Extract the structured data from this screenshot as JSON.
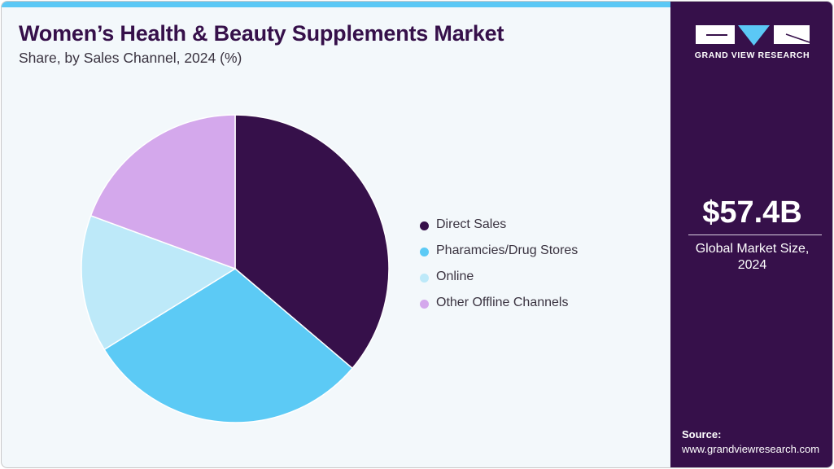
{
  "header": {
    "title": "Women’s Health & Beauty Supplements Market",
    "subtitle": "Share, by Sales Channel, 2024 (%)"
  },
  "legend": {
    "items": [
      {
        "label": "Direct Sales",
        "color": "#36104a"
      },
      {
        "label": "Pharamcies/Drug Stores",
        "color": "#5ccaf5"
      },
      {
        "label": "Online",
        "color": "#bde9f9"
      },
      {
        "label": "Other Offline Channels",
        "color": "#d4a8ec"
      }
    ]
  },
  "sidebar": {
    "brand": "GRAND VIEW RESEARCH",
    "market_size_value": "$57.4B",
    "market_size_label_line1": "Global Market Size,",
    "market_size_label_line2": "2024",
    "source_title": "Source:",
    "source_url": "www.grandviewresearch.com"
  },
  "colors": {
    "accent_bar": "#5bc8f5",
    "brand_purple": "#36104a",
    "background": "#f3f8fb"
  },
  "chart_data": {
    "type": "pie",
    "title": "Women’s Health & Beauty Supplements Market",
    "subtitle": "Share, by Sales Channel, 2024 (%)",
    "categories": [
      "Direct Sales",
      "Pharamcies/Drug Stores",
      "Online",
      "Other Offline Channels"
    ],
    "values": [
      36.2,
      30.0,
      14.4,
      19.4
    ],
    "colors": [
      "#36104a",
      "#5ccaf5",
      "#bde9f9",
      "#d4a8ec"
    ],
    "start_angle": "12 o'clock",
    "direction": "clockwise",
    "legend_position": "right"
  }
}
